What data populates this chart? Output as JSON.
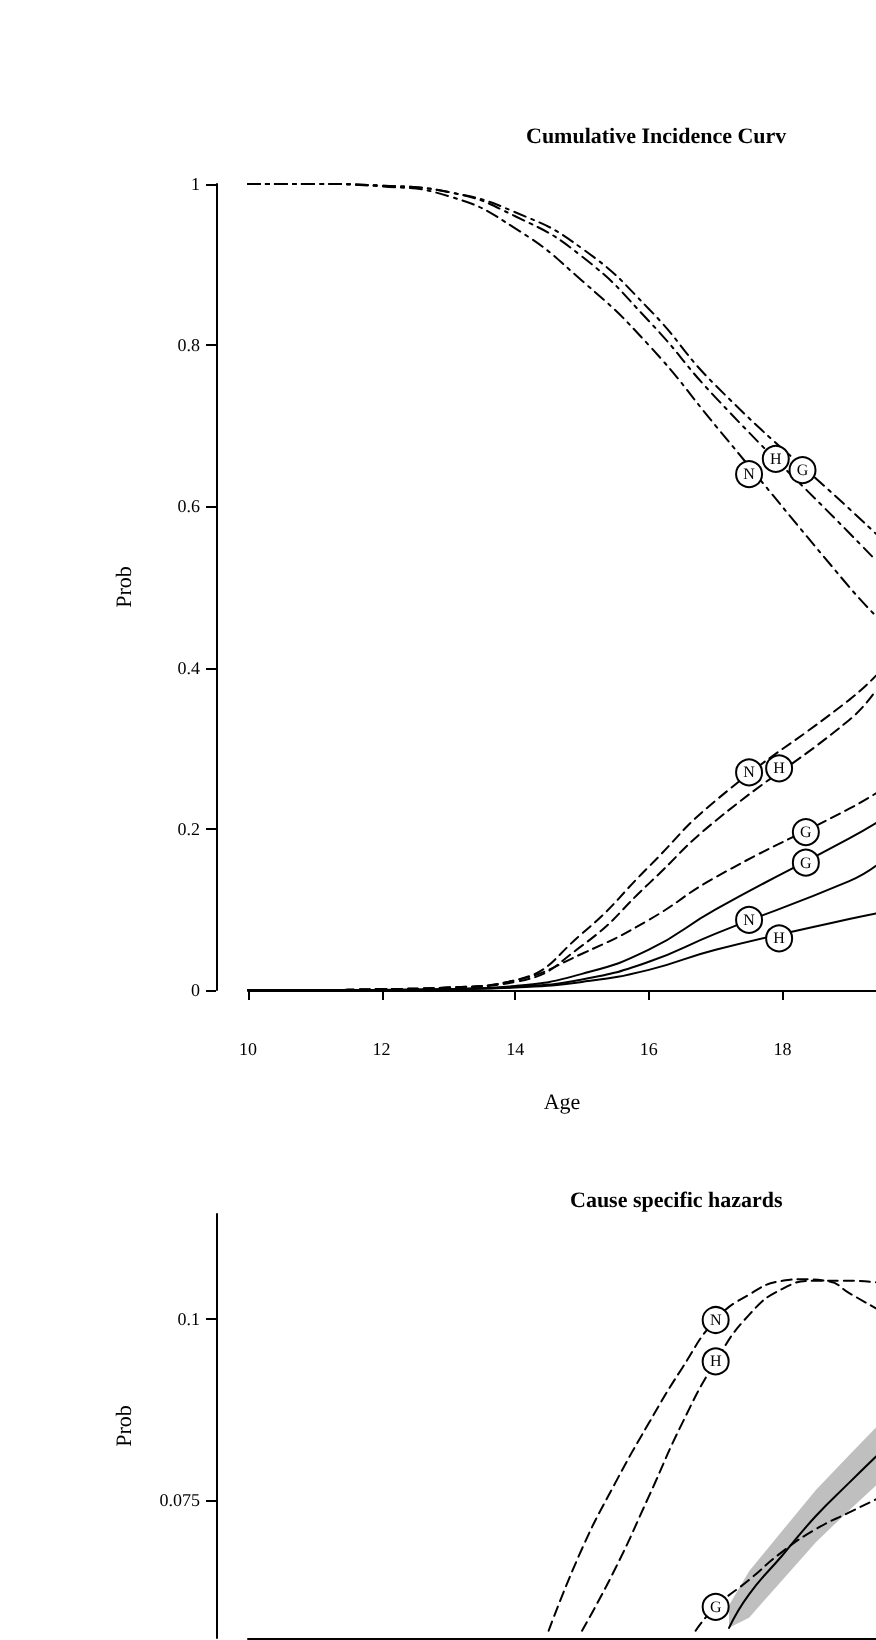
{
  "chart_data": [
    {
      "type": "line",
      "title": "Cumulative Incidence Curv",
      "xlabel": "Age",
      "ylabel": "Prob",
      "x": [
        10,
        11,
        12,
        13,
        14,
        15,
        16,
        17,
        19,
        19.4
      ],
      "xlim": [
        10,
        19.4
      ],
      "xticks": [
        10,
        12,
        14,
        16,
        18
      ],
      "ylim": [
        0,
        1
      ],
      "yticks": [
        0,
        0.2,
        0.4,
        0.6,
        0.8,
        1
      ],
      "grid": false,
      "series": [
        {
          "color": "#000000",
          "line_style": "dashdot",
          "values": [
            1,
            1,
            0.997,
            0.985,
            0.945,
            0.88,
            0.8,
            0.7,
            0.5,
            0.464
          ]
        },
        {
          "color": "#000000",
          "line_style": "dashdot",
          "values": [
            1,
            1,
            0.998,
            0.99,
            0.96,
            0.91,
            0.83,
            0.735,
            0.567,
            0.533
          ]
        },
        {
          "color": "#000000",
          "line_style": "dashdot",
          "values": [
            1,
            1,
            0.998,
            0.99,
            0.965,
            0.92,
            0.845,
            0.75,
            0.597,
            0.566
          ]
        },
        {
          "color": "#000000",
          "line_style": "dashed",
          "values": [
            0,
            0,
            0.001,
            0.003,
            0.012,
            0.07,
            0.153,
            0.235,
            0.36,
            0.39
          ]
        },
        {
          "color": "#000000",
          "line_style": "dashed",
          "values": [
            0,
            0,
            0.001,
            0.003,
            0.01,
            0.055,
            0.132,
            0.21,
            0.335,
            0.372
          ]
        },
        {
          "color": "#000000",
          "line_style": "dashed",
          "values": [
            0,
            0,
            0.001,
            0.003,
            0.012,
            0.045,
            0.087,
            0.14,
            0.225,
            0.244
          ]
        },
        {
          "color": "#000000",
          "line_style": "solid",
          "values": [
            0,
            0,
            0,
            0.001,
            0.005,
            0.02,
            0.05,
            0.1,
            0.188,
            0.207
          ]
        },
        {
          "color": "#000000",
          "line_style": "solid",
          "values": [
            0,
            0,
            0,
            0.001,
            0.004,
            0.013,
            0.035,
            0.07,
            0.135,
            0.154
          ]
        },
        {
          "color": "#000000",
          "line_style": "solid",
          "values": [
            0,
            0,
            0,
            0.001,
            0.003,
            0.01,
            0.025,
            0.05,
            0.088,
            0.095
          ]
        }
      ],
      "annotations": [
        {
          "text": "N",
          "x": 17.5,
          "y": 0.64
        },
        {
          "text": "H",
          "x": 17.9,
          "y": 0.659
        },
        {
          "text": "G",
          "x": 18.3,
          "y": 0.645
        },
        {
          "text": "N",
          "x": 17.5,
          "y": 0.27
        },
        {
          "text": "H",
          "x": 17.95,
          "y": 0.275
        },
        {
          "text": "G",
          "x": 18.35,
          "y": 0.196
        },
        {
          "text": "G",
          "x": 18.35,
          "y": 0.158
        },
        {
          "text": "N",
          "x": 17.5,
          "y": 0.087
        },
        {
          "text": "H",
          "x": 17.95,
          "y": 0.064
        }
      ]
    },
    {
      "type": "line",
      "title": "Cause specific hazards",
      "ylabel": "Prob",
      "xlim": [
        10,
        19.4
      ],
      "ylim": [
        0.056,
        0.1144
      ],
      "yticks": [
        0.075,
        0.1
      ],
      "tick_labels": "y",
      "grid": false,
      "series": [
        {
          "color": "#000000",
          "line_style": "dashed",
          "x": [
            14.5,
            15,
            15.5,
            16,
            16.5,
            17,
            17.5,
            18,
            18.3,
            18.7,
            19,
            19.4
          ],
          "values": [
            0.057,
            0.0683,
            0.0774,
            0.0856,
            0.0932,
            0.0998,
            0.1033,
            0.1052,
            0.1054,
            0.1051,
            0.1035,
            0.1014
          ]
        },
        {
          "color": "#000000",
          "line_style": "dashed",
          "x": [
            15,
            15.5,
            16,
            16.5,
            17,
            17.5,
            18,
            18.5,
            19,
            19.4
          ],
          "values": [
            0.057,
            0.0656,
            0.0755,
            0.0856,
            0.0941,
            0.1005,
            0.1041,
            0.1052,
            0.1052,
            0.105
          ]
        },
        {
          "color": "#000000",
          "line_style": "solid",
          "x": [
            17.2,
            17.5,
            18,
            18.5,
            19,
            19.4
          ],
          "values": [
            0.0574,
            0.062,
            0.0674,
            0.0728,
            0.0774,
            0.081
          ],
          "lower": [
            0.0574,
            0.0588,
            0.064,
            0.0692,
            0.0736,
            0.077
          ],
          "upper": [
            0.0605,
            0.0652,
            0.0708,
            0.0764,
            0.0812,
            0.085
          ]
        },
        {
          "color": "#000000",
          "line_style": "dashed",
          "x": [
            16.7,
            17,
            17.5,
            18,
            18.5,
            19,
            19.4
          ],
          "values": [
            0.057,
            0.0603,
            0.064,
            0.0679,
            0.071,
            0.0733,
            0.0751
          ]
        }
      ],
      "annotations": [
        {
          "text": "N",
          "x": 17,
          "y": 0.0998
        },
        {
          "text": "H",
          "x": 17,
          "y": 0.0941
        },
        {
          "text": "G",
          "x": 17,
          "y": 0.0603
        }
      ]
    }
  ]
}
